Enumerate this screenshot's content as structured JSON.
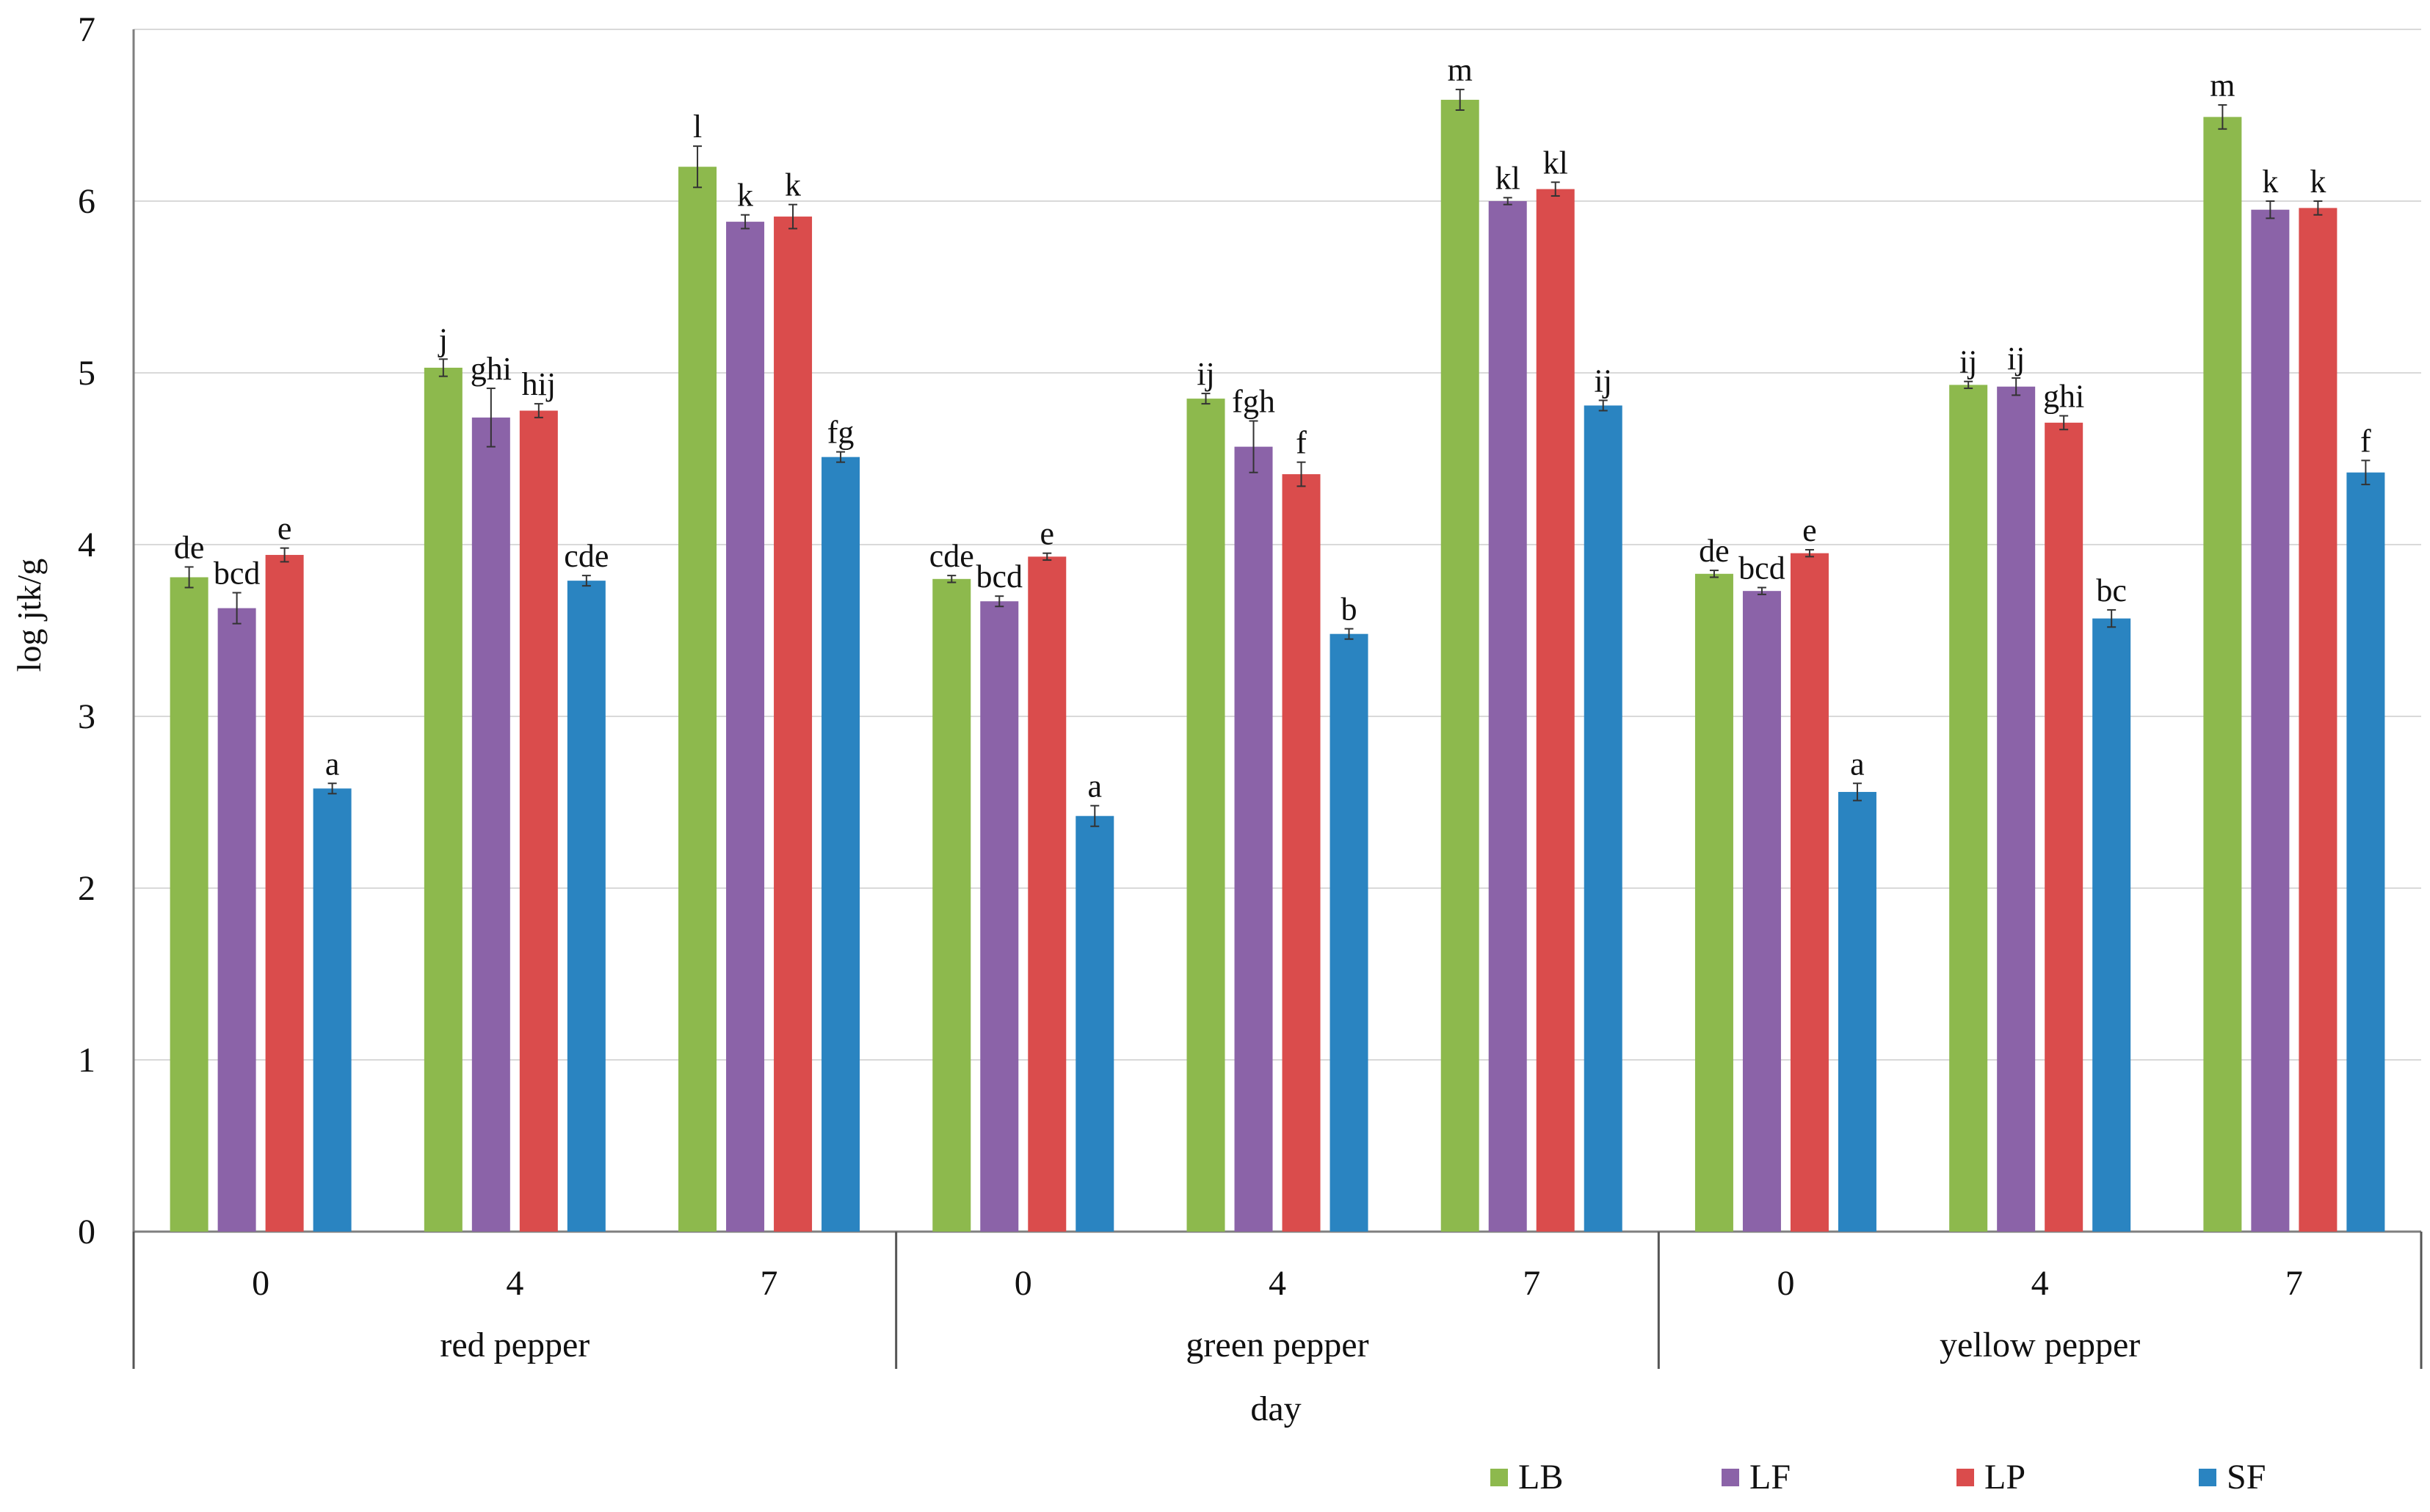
{
  "chart_data": {
    "type": "bar",
    "title": "",
    "ylabel": "log jtk/g",
    "xlabel": "day",
    "ylim": [
      0,
      7
    ],
    "yticks": [
      "0",
      "1",
      "2",
      "3",
      "4",
      "5",
      "6",
      "7"
    ],
    "groups": [
      {
        "label": "red pepper",
        "days": [
          "0",
          "4",
          "7"
        ]
      },
      {
        "label": "green pepper",
        "days": [
          "0",
          "4",
          "7"
        ]
      },
      {
        "label": "yellow pepper",
        "days": [
          "0",
          "4",
          "7"
        ]
      }
    ],
    "series": [
      {
        "name": "LB",
        "color": "#8DB94D",
        "values": [
          3.81,
          5.03,
          6.2,
          3.8,
          4.85,
          6.59,
          3.83,
          4.93,
          6.49
        ],
        "errors": [
          0.06,
          0.05,
          0.12,
          0.02,
          0.03,
          0.06,
          0.02,
          0.02,
          0.07
        ],
        "labels": [
          "de",
          "j",
          "l",
          "cde",
          "ij",
          "m",
          "de",
          "ij",
          "m"
        ]
      },
      {
        "name": "LF",
        "color": "#8B63A8",
        "values": [
          3.63,
          4.74,
          5.88,
          3.67,
          4.57,
          6.0,
          3.73,
          4.92,
          5.95
        ],
        "errors": [
          0.09,
          0.17,
          0.04,
          0.03,
          0.15,
          0.02,
          0.02,
          0.05,
          0.05
        ],
        "labels": [
          "bcd",
          "ghi",
          "k",
          "bcd",
          "fgh",
          "kl",
          "bcd",
          "ij",
          "k"
        ]
      },
      {
        "name": "LP",
        "color": "#DA4C4C",
        "values": [
          3.94,
          4.78,
          5.91,
          3.93,
          4.41,
          6.07,
          3.95,
          4.71,
          5.96
        ],
        "errors": [
          0.04,
          0.04,
          0.07,
          0.02,
          0.07,
          0.04,
          0.02,
          0.04,
          0.04
        ],
        "labels": [
          "e",
          "hij",
          "k",
          "e",
          "f",
          "kl",
          "e",
          "ghi",
          "k"
        ]
      },
      {
        "name": "SF",
        "color": "#2A84C1",
        "values": [
          2.58,
          3.79,
          4.51,
          2.42,
          3.48,
          4.81,
          2.56,
          3.57,
          4.42
        ],
        "errors": [
          0.03,
          0.03,
          0.03,
          0.06,
          0.03,
          0.03,
          0.05,
          0.05,
          0.07
        ],
        "labels": [
          "a",
          "cde",
          "fg",
          "a",
          "b",
          "ij",
          "a",
          "bc",
          "f"
        ]
      }
    ],
    "legend": {
      "position": "bottom-right",
      "entries": [
        "LB",
        "LF",
        "LP",
        "SF"
      ]
    },
    "grid": true
  }
}
